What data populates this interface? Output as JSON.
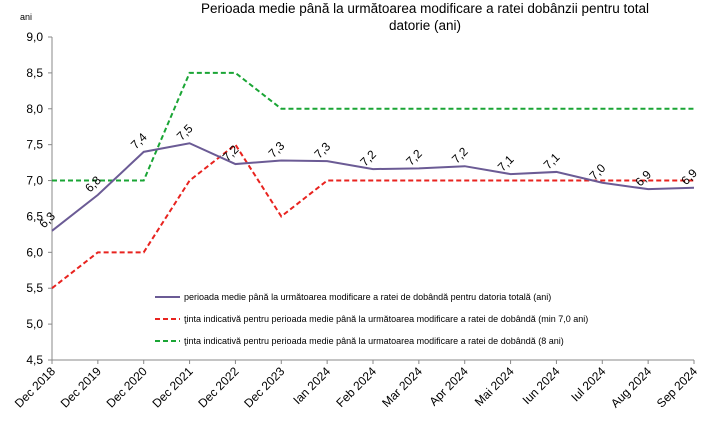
{
  "chart_data": {
    "type": "line",
    "title": [
      "Perioada medie până la următoarea modificare a ratei dobânzii pentru total",
      "datorie (ani)"
    ],
    "y_unit": "ani",
    "categories": [
      "Dec 2018",
      "Dec 2019",
      "Dec 2020",
      "Dec 2021",
      "Dec 2022",
      "Dec 2023",
      "Ian 2024",
      "Feb 2024",
      "Mar 2024",
      "Apr 2024",
      "Mai 2024",
      "Iun 2024",
      "Iul 2024",
      "Aug 2024",
      "Sep 2024"
    ],
    "series": [
      {
        "name": "perioada medie până la următoarea modificare a ratei de dobândă pentru datoria totală (ani)",
        "color": "#6b5b95",
        "dash": false,
        "values": [
          6.3,
          6.8,
          7.4,
          7.52,
          7.23,
          7.28,
          7.27,
          7.16,
          7.17,
          7.2,
          7.09,
          7.12,
          6.97,
          6.88,
          6.9
        ],
        "value_labels": [
          "6,3",
          "6,8",
          "7,4",
          "7,5",
          "7,2",
          "7,3",
          "7,3",
          "7,2",
          "7,2",
          "7,2",
          "7,1",
          "7,1",
          "7,0",
          "6,9",
          "6,9"
        ]
      },
      {
        "name": "ţinta indicativă pentru perioada medie până la următoarea modificare a ratei de dobândă (min 7,0 ani)",
        "color": "#e8231f",
        "dash": true,
        "values": [
          5.5,
          6.0,
          6.0,
          7.0,
          7.5,
          6.5,
          7.0,
          7.0,
          7.0,
          7.0,
          7.0,
          7.0,
          7.0,
          7.0,
          7.0
        ]
      },
      {
        "name": "ţinta indicativă pentru perioada medie până la urmatoarea modificare a ratei de dobândă (8 ani)",
        "color": "#1aa535",
        "dash": true,
        "values": [
          7.0,
          7.0,
          7.0,
          8.5,
          8.5,
          8.0,
          8.0,
          8.0,
          8.0,
          8.0,
          8.0,
          8.0,
          8.0,
          8.0,
          8.0
        ]
      }
    ],
    "ylim": [
      4.5,
      9.0
    ],
    "yticks": [
      {
        "value": 4.5,
        "label": "4,5"
      },
      {
        "value": 5.0,
        "label": "5,0"
      },
      {
        "value": 5.5,
        "label": "5,5"
      },
      {
        "value": 6.0,
        "label": "6,0"
      },
      {
        "value": 6.5,
        "label": "6,5"
      },
      {
        "value": 7.0,
        "label": "7,0"
      },
      {
        "value": 7.5,
        "label": "7,5"
      },
      {
        "value": 8.0,
        "label": "8,0"
      },
      {
        "value": 8.5,
        "label": "8,5"
      },
      {
        "value": 9.0,
        "label": "9,0"
      }
    ],
    "grid": false
  }
}
